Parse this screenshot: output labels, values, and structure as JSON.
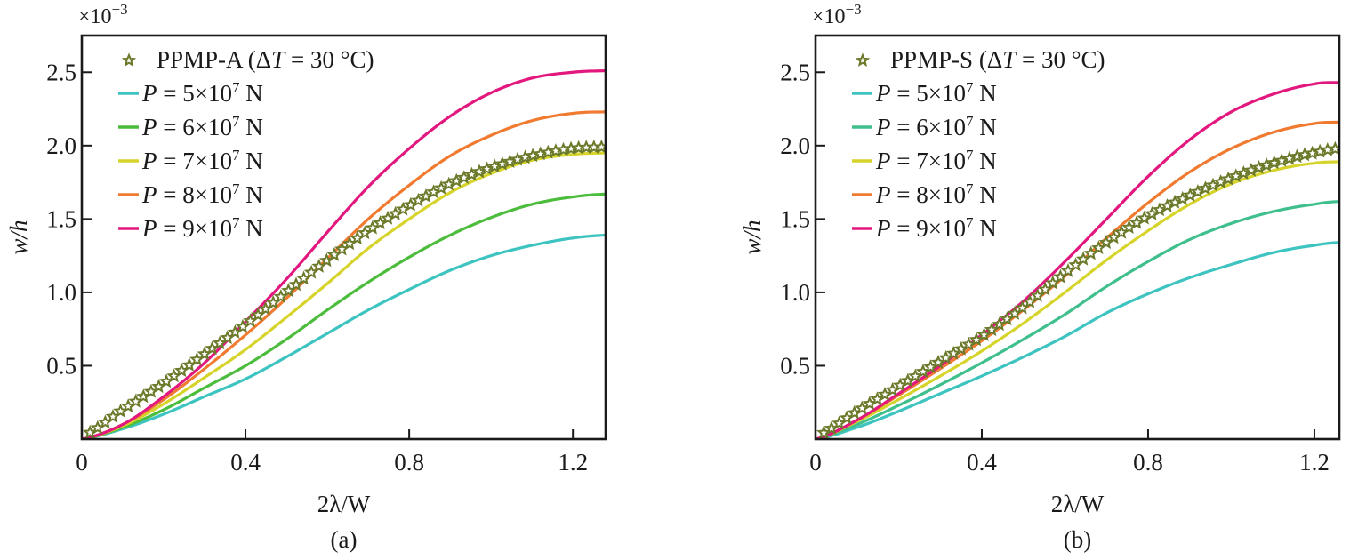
{
  "chart_data": [
    {
      "type": "line",
      "panel_label": "(a)",
      "xlabel": "2λ/W",
      "ylabel": "w/h",
      "y_multiplier": "×10",
      "y_multiplier_exp": "−3",
      "xlim": [
        0,
        1.28
      ],
      "ylim": [
        0,
        2.75
      ],
      "xticks": [
        0,
        0.4,
        0.8,
        1.2
      ],
      "xtick_labels": [
        "0",
        "0.4",
        "0.8",
        "1.2"
      ],
      "yticks": [
        0.5,
        1.0,
        1.5,
        2.0,
        2.5
      ],
      "ytick_labels": [
        "0.5",
        "1.0",
        "1.5",
        "2.0",
        "2.5"
      ],
      "grid": false,
      "legend_position": "top-left",
      "x": [
        0,
        0.1,
        0.2,
        0.3,
        0.4,
        0.5,
        0.6,
        0.7,
        0.8,
        0.9,
        1.0,
        1.1,
        1.2,
        1.28
      ],
      "markers": {
        "name": "PPMP-A",
        "label_prefix": "PPMP-A (",
        "label_delta": "Δ",
        "label_T": "T",
        "label_suffix": " = 30 °C)",
        "color": "#6b7a2a",
        "marker": "star",
        "values": [
          0.02,
          0.2,
          0.38,
          0.58,
          0.78,
          1.0,
          1.22,
          1.42,
          1.59,
          1.74,
          1.85,
          1.93,
          1.98,
          1.99
        ]
      },
      "series": [
        {
          "name": "P=5×10^7 N",
          "P_mantissa": "5",
          "color": "#3ec4c0",
          "values": [
            0,
            0.07,
            0.17,
            0.29,
            0.41,
            0.56,
            0.72,
            0.88,
            1.02,
            1.15,
            1.25,
            1.32,
            1.37,
            1.39
          ]
        },
        {
          "name": "P=6×10^7 N",
          "P_mantissa": "6",
          "color": "#4cbc3c",
          "values": [
            0,
            0.08,
            0.2,
            0.35,
            0.5,
            0.68,
            0.88,
            1.07,
            1.24,
            1.39,
            1.51,
            1.6,
            1.65,
            1.67
          ]
        },
        {
          "name": "P=7×10^7 N",
          "P_mantissa": "7",
          "color": "#d6d42a",
          "values": [
            0,
            0.09,
            0.24,
            0.42,
            0.61,
            0.83,
            1.06,
            1.3,
            1.5,
            1.68,
            1.81,
            1.9,
            1.94,
            1.95
          ]
        },
        {
          "name": "P=8×10^7 N",
          "P_mantissa": "8",
          "color": "#f07a30",
          "values": [
            0,
            0.1,
            0.27,
            0.48,
            0.71,
            0.96,
            1.23,
            1.5,
            1.73,
            1.93,
            2.07,
            2.17,
            2.22,
            2.23
          ]
        },
        {
          "name": "P=9×10^7 N",
          "P_mantissa": "9",
          "color": "#e2187e",
          "values": [
            0,
            0.1,
            0.29,
            0.52,
            0.8,
            1.09,
            1.41,
            1.72,
            1.98,
            2.2,
            2.36,
            2.46,
            2.5,
            2.51
          ]
        }
      ]
    },
    {
      "type": "line",
      "panel_label": "(b)",
      "xlabel": "2λ/W",
      "ylabel": "w/h",
      "y_multiplier": "×10",
      "y_multiplier_exp": "−3",
      "xlim": [
        0,
        1.26
      ],
      "ylim": [
        0,
        2.75
      ],
      "xticks": [
        0,
        0.4,
        0.8,
        1.2
      ],
      "xtick_labels": [
        "0",
        "0.4",
        "0.8",
        "1.2"
      ],
      "yticks": [
        0.5,
        1.0,
        1.5,
        2.0,
        2.5
      ],
      "ytick_labels": [
        "0.5",
        "1.0",
        "1.5",
        "2.0",
        "2.5"
      ],
      "grid": false,
      "legend_position": "top-left",
      "x": [
        0,
        0.1,
        0.2,
        0.3,
        0.4,
        0.5,
        0.6,
        0.7,
        0.8,
        0.9,
        1.0,
        1.1,
        1.2,
        1.26
      ],
      "markers": {
        "name": "PPMP-S",
        "label_prefix": "PPMP-S (",
        "label_delta": "Δ",
        "label_T": "T",
        "label_suffix": " = 30 °C)",
        "color": "#6b7a2a",
        "marker": "star",
        "values": [
          0.02,
          0.19,
          0.36,
          0.53,
          0.7,
          0.9,
          1.13,
          1.34,
          1.52,
          1.66,
          1.78,
          1.88,
          1.95,
          1.98
        ]
      },
      "series": [
        {
          "name": "P=5×10^7 N",
          "P_mantissa": "5",
          "color": "#3ec4c0",
          "values": [
            0,
            0.08,
            0.19,
            0.31,
            0.43,
            0.56,
            0.7,
            0.86,
            0.99,
            1.1,
            1.19,
            1.27,
            1.32,
            1.34
          ]
        },
        {
          "name": "P=6×10^7 N",
          "P_mantissa": "6",
          "color": "#3fbf8c",
          "values": [
            0,
            0.1,
            0.23,
            0.37,
            0.52,
            0.68,
            0.85,
            1.04,
            1.21,
            1.36,
            1.47,
            1.55,
            1.6,
            1.62
          ]
        },
        {
          "name": "P=7×10^7 N",
          "P_mantissa": "7",
          "color": "#d6d42a",
          "values": [
            0,
            0.12,
            0.27,
            0.43,
            0.6,
            0.79,
            1.0,
            1.22,
            1.42,
            1.6,
            1.74,
            1.83,
            1.88,
            1.89
          ]
        },
        {
          "name": "P=8×10^7 N",
          "P_mantissa": "8",
          "color": "#f07a30",
          "values": [
            0,
            0.13,
            0.3,
            0.48,
            0.67,
            0.88,
            1.11,
            1.37,
            1.61,
            1.82,
            1.98,
            2.09,
            2.15,
            2.16
          ]
        },
        {
          "name": "P=9×10^7 N",
          "P_mantissa": "9",
          "color": "#e2187e",
          "values": [
            0,
            0.13,
            0.31,
            0.5,
            0.71,
            0.94,
            1.21,
            1.5,
            1.79,
            2.04,
            2.23,
            2.35,
            2.42,
            2.43
          ]
        }
      ]
    }
  ]
}
